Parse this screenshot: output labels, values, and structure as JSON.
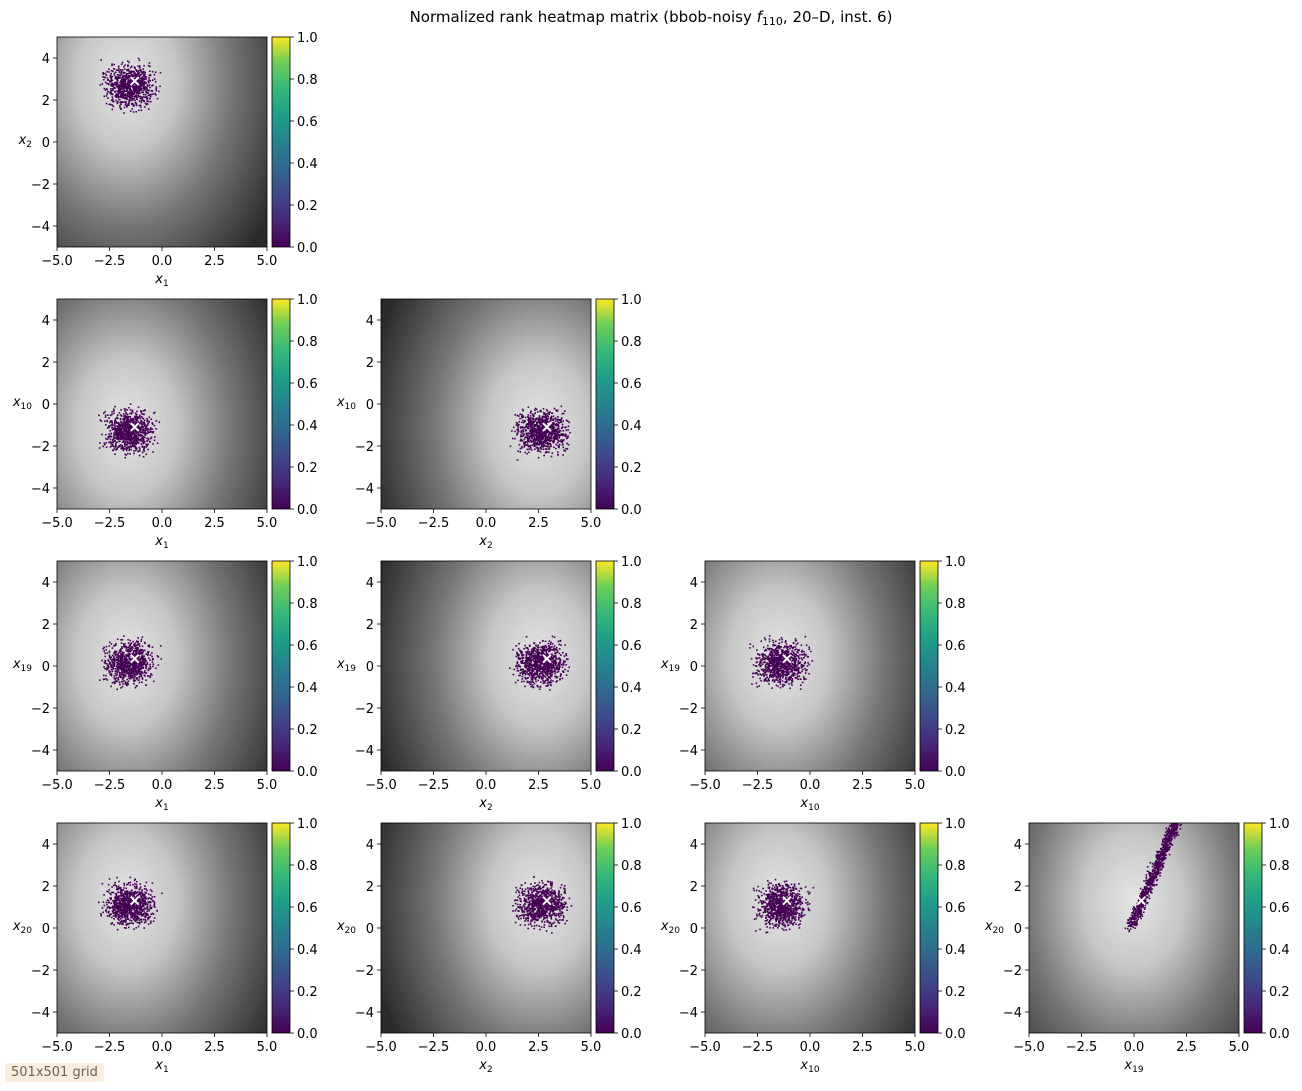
{
  "title": {
    "prefix": "Normalized rank heatmap matrix (bbob-noisy ",
    "fn": "f",
    "fn_sub": "110",
    "suffix": ", 20–D, inst. 6)"
  },
  "grid_label": "501x501 grid",
  "chart_data": {
    "type": "heatmap",
    "variables": [
      "x1",
      "x2",
      "x10",
      "x19",
      "x20"
    ],
    "axis_labels": {
      "x1": {
        "base": "x",
        "sub": "1"
      },
      "x2": {
        "base": "x",
        "sub": "2"
      },
      "x10": {
        "base": "x",
        "sub": "10"
      },
      "x19": {
        "base": "x",
        "sub": "19"
      },
      "x20": {
        "base": "x",
        "sub": "20"
      }
    },
    "xlim": [
      -5,
      5
    ],
    "ylim": [
      -5,
      5
    ],
    "x_ticks": [
      "−5.0",
      "−2.5",
      "0.0",
      "2.5",
      "5.0"
    ],
    "y_ticks": [
      "−4",
      "−2",
      "0",
      "2",
      "4"
    ],
    "y_tick_values": [
      -4,
      -2,
      0,
      2,
      4
    ],
    "x_tick_values": [
      -5,
      -2.5,
      0,
      2.5,
      5
    ],
    "colorbar": {
      "colormap": "viridis",
      "range": [
        0,
        1
      ],
      "ticks": [
        "0.0",
        "0.2",
        "0.4",
        "0.6",
        "0.8",
        "1.0"
      ],
      "tick_values": [
        0,
        0.2,
        0.4,
        0.6,
        0.8,
        1.0
      ]
    },
    "optimum": {
      "x1": -1.3,
      "x2": 2.9,
      "x10": -1.1,
      "x19": 0.35,
      "x20": 1.3
    },
    "panels": [
      {
        "x": "x1",
        "y": "x2"
      },
      {
        "x": "x1",
        "y": "x10"
      },
      {
        "x": "x2",
        "y": "x10"
      },
      {
        "x": "x1",
        "y": "x19"
      },
      {
        "x": "x2",
        "y": "x19"
      },
      {
        "x": "x10",
        "y": "x19"
      },
      {
        "x": "x1",
        "y": "x20"
      },
      {
        "x": "x2",
        "y": "x20"
      },
      {
        "x": "x10",
        "y": "x20"
      },
      {
        "x": "x19",
        "y": "x20"
      }
    ]
  }
}
